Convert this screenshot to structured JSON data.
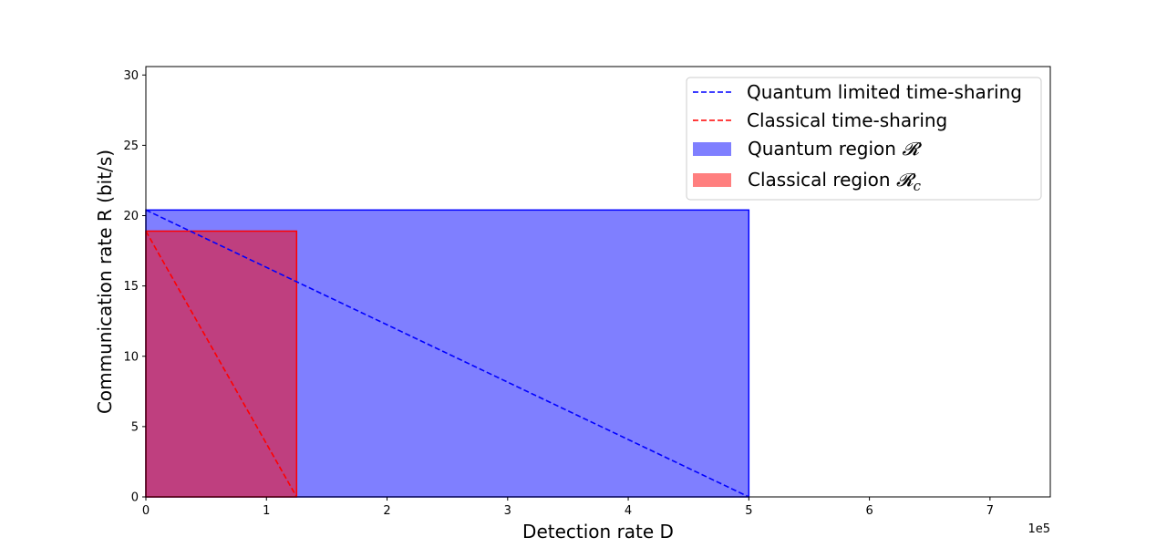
{
  "chart_data": {
    "type": "area",
    "xlabel": "Detection rate D",
    "ylabel": "Communication rate R (bit/s)",
    "x_multiplier_label": "1e5",
    "xlim": [
      0,
      7.5
    ],
    "ylim": [
      0,
      30.6
    ],
    "x_unit_scale": 100000,
    "x_ticks": [
      0,
      1,
      2,
      3,
      4,
      5,
      6,
      7
    ],
    "y_ticks": [
      0,
      5,
      10,
      15,
      20,
      25,
      30
    ],
    "grid": false,
    "legend_position": "top-right",
    "regions": [
      {
        "name": "Quantum region",
        "symbol": "𝓡",
        "subscript": "",
        "x": [
          0,
          5.0
        ],
        "y": [
          0,
          20.4
        ],
        "color": "#0000ff",
        "fill_opacity": 0.5
      },
      {
        "name": "Classical region",
        "symbol": "𝓡",
        "subscript": "c",
        "x": [
          0,
          1.25
        ],
        "y": [
          0,
          18.9
        ],
        "color": "#ff0000",
        "fill_opacity": 0.5
      }
    ],
    "series": [
      {
        "name": "Quantum limited time-sharing",
        "style": "dashed",
        "color": "#0000ff",
        "points": [
          [
            0,
            20.4
          ],
          [
            5.0,
            0
          ]
        ]
      },
      {
        "name": "Classical time-sharing",
        "style": "dashed",
        "color": "#ff0000",
        "points": [
          [
            0,
            18.9
          ],
          [
            1.25,
            0
          ]
        ]
      }
    ]
  }
}
